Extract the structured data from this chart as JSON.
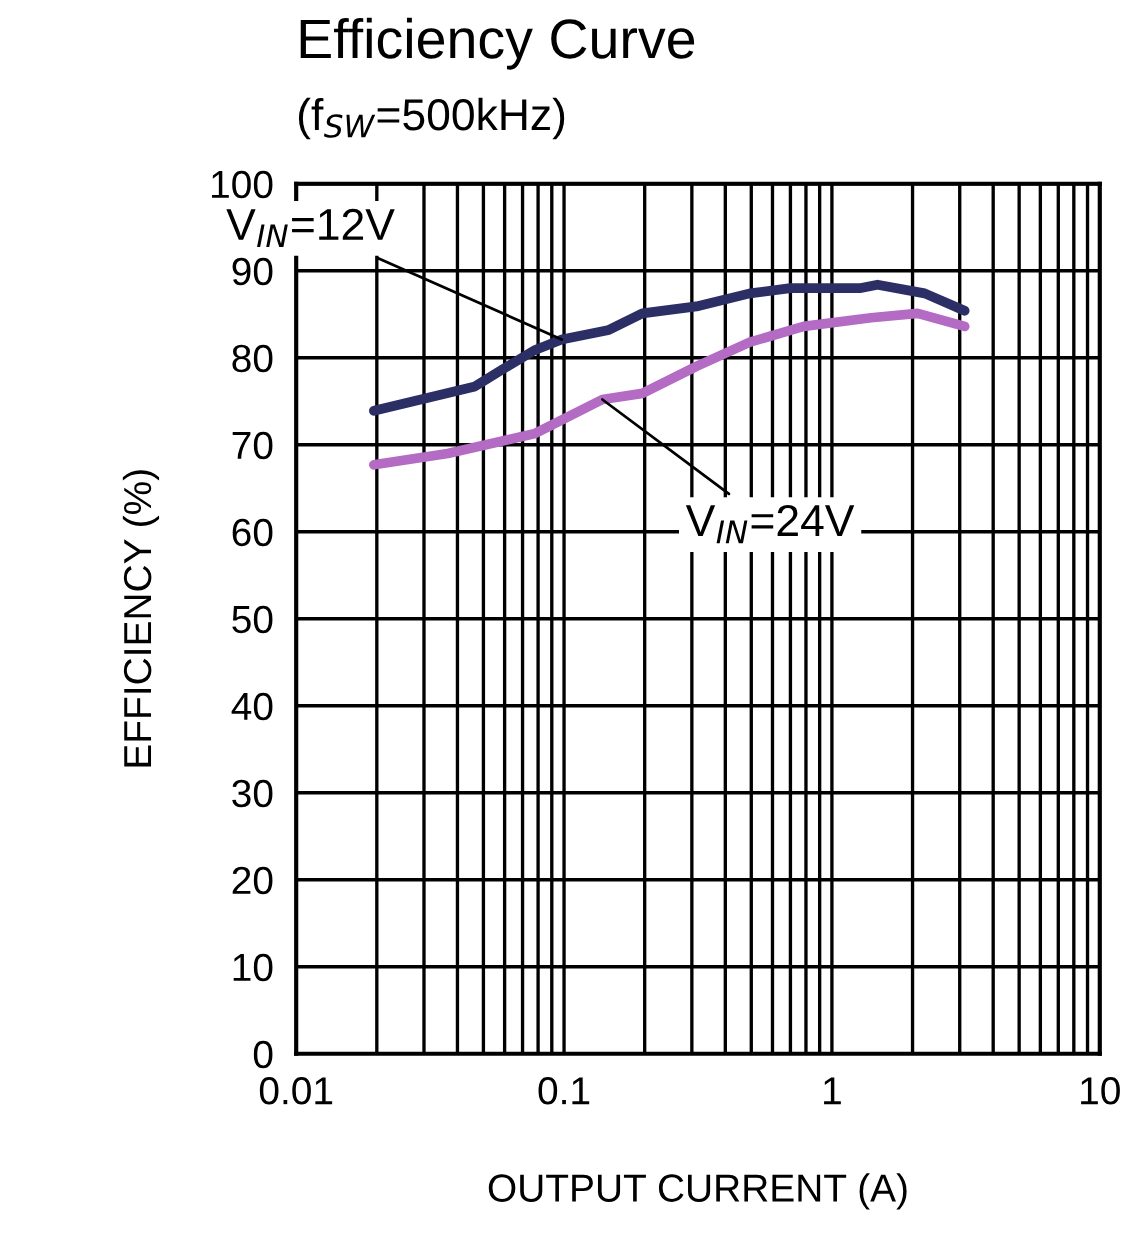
{
  "chart_data": {
    "type": "line",
    "title": "Efficiency Curve",
    "subtitle": "(f$_{SW}$=500kHz)",
    "xlabel": "OUTPUT CURRENT (A)",
    "ylabel": "EFFICIENCY (%)",
    "log": "x",
    "xlim": [
      0.01,
      10
    ],
    "xticks": [
      0.01,
      0.1,
      1,
      10
    ],
    "ylim": [
      0,
      100
    ],
    "yticks": [
      0,
      10,
      20,
      30,
      40,
      50,
      60,
      70,
      80,
      90,
      100
    ],
    "grid": true,
    "legend": false,
    "marker": "none",
    "line_style": "solid",
    "series": [
      {
        "name": "V$_{IN}$=12V",
        "color": "#2b2f66",
        "x": [
          0.0195,
          0.0465,
          0.0585,
          0.078,
          0.098,
          0.147,
          0.196,
          0.312,
          0.494,
          0.7,
          1.27,
          1.48,
          2.22,
          3.13
        ],
        "values": [
          73.9,
          76.7,
          78.6,
          80.9,
          82.1,
          83.2,
          85.1,
          85.9,
          87.4,
          88.0,
          88.0,
          88.4,
          87.4,
          85.4
        ]
      },
      {
        "name": "V$_{IN}$=24V",
        "color": "#b36bc4",
        "x": [
          0.0195,
          0.0368,
          0.078,
          0.139,
          0.196,
          0.312,
          0.494,
          0.785,
          1.4,
          2.09,
          3.13
        ],
        "values": [
          67.7,
          69.0,
          71.3,
          75.2,
          75.9,
          79.0,
          81.8,
          83.6,
          84.6,
          85.1,
          83.6
        ]
      }
    ]
  }
}
